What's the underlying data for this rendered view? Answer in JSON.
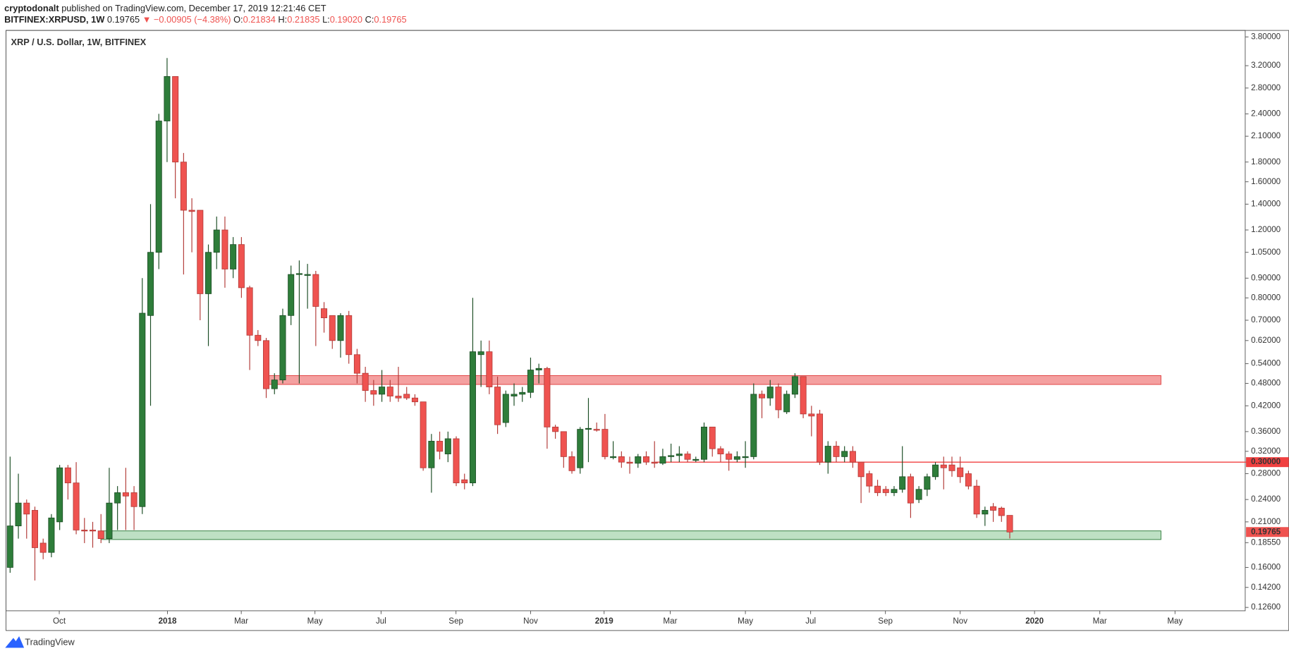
{
  "header": {
    "author": "cryptodonalt",
    "published": "published on TradingView.com, December 17, 2019 12:21:46 CET",
    "symbol": "BITFINEX:XRPUSD, 1W",
    "last": "0.19765",
    "change": "▼ −0.00905 (−4.38%)",
    "ohlc": [
      {
        "key": "O:",
        "value": "0.21834"
      },
      {
        "key": "H:",
        "value": "0.21835"
      },
      {
        "key": "L:",
        "value": "0.19020"
      },
      {
        "key": "C:",
        "value": "0.19765"
      }
    ]
  },
  "footer": {
    "brand": "TradingView"
  },
  "chart_data": {
    "type": "candlestick",
    "title": "XRP / U.S. Dollar, 1W, BITFINEX",
    "up_color": "#2e7d3a",
    "down_color": "#ef5350",
    "log_scale": true,
    "series": {
      "open": [
        0.16,
        0.205,
        0.235,
        0.225,
        0.185,
        0.175,
        0.21,
        0.29,
        0.265,
        0.2,
        0.2,
        0.199,
        0.19,
        0.235,
        0.25,
        0.25,
        0.23,
        0.72,
        1.05,
        2.3,
        3.0,
        1.8,
        1.35,
        1.35,
        0.82,
        1.05,
        1.2,
        0.95,
        1.1,
        0.85,
        0.64,
        0.62,
        0.465,
        0.49,
        0.72,
        0.92,
        0.92,
        0.92,
        0.75,
        0.72,
        0.62,
        0.72,
        0.57,
        0.51,
        0.46,
        0.45,
        0.47,
        0.445,
        0.45,
        0.44,
        0.43,
        0.29,
        0.34,
        0.315,
        0.345,
        0.27,
        0.265,
        0.57,
        0.58,
        0.47,
        0.38,
        0.445,
        0.45,
        0.455,
        0.52,
        0.525,
        0.37,
        0.36,
        0.31,
        0.29,
        0.365,
        0.365,
        0.365,
        0.31,
        0.31,
        0.3,
        0.298,
        0.31,
        0.3,
        0.298,
        0.31,
        0.312,
        0.315,
        0.305,
        0.305,
        0.37,
        0.325,
        0.315,
        0.305,
        0.31,
        0.31,
        0.45,
        0.44,
        0.47,
        0.405,
        0.45,
        0.5,
        0.4,
        0.4,
        0.3,
        0.33,
        0.31,
        0.32,
        0.3,
        0.28,
        0.26,
        0.255,
        0.25,
        0.255,
        0.275,
        0.24,
        0.255,
        0.275,
        0.295,
        0.295,
        0.29,
        0.28,
        0.26,
        0.22,
        0.23,
        0.228,
        0.21834
      ],
      "high": [
        0.31,
        0.28,
        0.24,
        0.23,
        0.19,
        0.22,
        0.295,
        0.295,
        0.3,
        0.215,
        0.21,
        0.22,
        0.29,
        0.26,
        0.29,
        0.26,
        0.9,
        1.4,
        2.4,
        3.35,
        3.0,
        1.9,
        1.45,
        1.35,
        1.1,
        1.3,
        1.3,
        1.15,
        1.15,
        0.86,
        0.66,
        0.63,
        0.51,
        0.75,
        0.97,
        1.0,
        0.98,
        0.94,
        0.78,
        0.72,
        0.73,
        0.74,
        0.59,
        0.53,
        0.49,
        0.52,
        0.49,
        0.53,
        0.47,
        0.45,
        0.43,
        0.355,
        0.36,
        0.36,
        0.35,
        0.28,
        0.8,
        0.62,
        0.62,
        0.5,
        0.46,
        0.48,
        0.47,
        0.56,
        0.54,
        0.53,
        0.375,
        0.36,
        0.32,
        0.37,
        0.44,
        0.38,
        0.4,
        0.34,
        0.32,
        0.31,
        0.315,
        0.32,
        0.34,
        0.325,
        0.335,
        0.33,
        0.32,
        0.31,
        0.38,
        0.37,
        0.33,
        0.32,
        0.32,
        0.34,
        0.48,
        0.46,
        0.49,
        0.48,
        0.46,
        0.51,
        0.5,
        0.42,
        0.41,
        0.34,
        0.34,
        0.33,
        0.33,
        0.3,
        0.285,
        0.27,
        0.26,
        0.26,
        0.33,
        0.28,
        0.26,
        0.28,
        0.3,
        0.31,
        0.31,
        0.31,
        0.285,
        0.27,
        0.23,
        0.235,
        0.23,
        0.21835
      ],
      "low": [
        0.155,
        0.19,
        0.19,
        0.148,
        0.168,
        0.17,
        0.2,
        0.24,
        0.195,
        0.185,
        0.18,
        0.185,
        0.185,
        0.2,
        0.2,
        0.2,
        0.22,
        0.42,
        0.95,
        1.8,
        1.45,
        0.92,
        1.05,
        0.7,
        0.6,
        0.95,
        0.85,
        0.9,
        0.8,
        0.52,
        0.6,
        0.44,
        0.45,
        0.48,
        0.68,
        0.48,
        0.75,
        0.6,
        0.65,
        0.59,
        0.56,
        0.54,
        0.48,
        0.43,
        0.42,
        0.43,
        0.43,
        0.43,
        0.435,
        0.42,
        0.285,
        0.25,
        0.305,
        0.3,
        0.26,
        0.255,
        0.26,
        0.47,
        0.45,
        0.355,
        0.37,
        0.42,
        0.43,
        0.44,
        0.48,
        0.325,
        0.345,
        0.29,
        0.28,
        0.28,
        0.3,
        0.36,
        0.305,
        0.305,
        0.29,
        0.28,
        0.29,
        0.295,
        0.29,
        0.295,
        0.3,
        0.3,
        0.3,
        0.3,
        0.3,
        0.31,
        0.3,
        0.285,
        0.3,
        0.29,
        0.305,
        0.39,
        0.42,
        0.39,
        0.4,
        0.44,
        0.39,
        0.35,
        0.295,
        0.28,
        0.3,
        0.3,
        0.29,
        0.235,
        0.25,
        0.245,
        0.245,
        0.245,
        0.25,
        0.215,
        0.235,
        0.245,
        0.27,
        0.255,
        0.275,
        0.265,
        0.255,
        0.215,
        0.205,
        0.21,
        0.21,
        0.1902
      ],
      "close": [
        0.205,
        0.235,
        0.22,
        0.18,
        0.175,
        0.215,
        0.29,
        0.265,
        0.2,
        0.199,
        0.199,
        0.19,
        0.235,
        0.25,
        0.245,
        0.23,
        0.73,
        1.05,
        2.3,
        3.0,
        1.8,
        1.35,
        1.34,
        0.82,
        1.05,
        1.2,
        0.95,
        1.1,
        0.85,
        0.64,
        0.62,
        0.465,
        0.49,
        0.72,
        0.92,
        0.925,
        0.92,
        0.76,
        0.71,
        0.62,
        0.72,
        0.57,
        0.51,
        0.46,
        0.45,
        0.47,
        0.445,
        0.44,
        0.44,
        0.43,
        0.29,
        0.34,
        0.32,
        0.345,
        0.265,
        0.265,
        0.58,
        0.58,
        0.47,
        0.375,
        0.45,
        0.45,
        0.455,
        0.52,
        0.525,
        0.37,
        0.36,
        0.31,
        0.285,
        0.365,
        0.367,
        0.363,
        0.31,
        0.31,
        0.3,
        0.298,
        0.31,
        0.3,
        0.298,
        0.31,
        0.312,
        0.315,
        0.305,
        0.305,
        0.37,
        0.325,
        0.315,
        0.305,
        0.31,
        0.31,
        0.45,
        0.44,
        0.47,
        0.41,
        0.45,
        0.5,
        0.4,
        0.395,
        0.3,
        0.33,
        0.31,
        0.32,
        0.3,
        0.275,
        0.26,
        0.25,
        0.25,
        0.255,
        0.275,
        0.235,
        0.255,
        0.275,
        0.295,
        0.29,
        0.285,
        0.275,
        0.26,
        0.22,
        0.225,
        0.225,
        0.218,
        0.19765
      ]
    },
    "xlim": [
      -0.5,
      149.5
    ],
    "xticks": [
      {
        "value": 5.95,
        "label": "Oct"
      },
      {
        "value": 19.05,
        "label": "2018"
      },
      {
        "value": 27.98,
        "label": "Mar"
      },
      {
        "value": 36.9,
        "label": "May"
      },
      {
        "value": 44.9,
        "label": "Jul"
      },
      {
        "value": 53.97,
        "label": "Sep"
      },
      {
        "value": 63,
        "label": "Nov"
      },
      {
        "value": 71.9,
        "label": "2019"
      },
      {
        "value": 79.9,
        "label": "Mar"
      },
      {
        "value": 89,
        "label": "May"
      },
      {
        "value": 96.9,
        "label": "Jul"
      },
      {
        "value": 105.95,
        "label": "Sep"
      },
      {
        "value": 115,
        "label": "Nov"
      },
      {
        "value": 124,
        "label": "2020"
      },
      {
        "value": 131.9,
        "label": "Mar"
      },
      {
        "value": 141,
        "label": "May"
      }
    ],
    "ylim": [
      0.1235,
      3.95
    ],
    "yticks": [
      {
        "value": 0.126,
        "label": "0.12600"
      },
      {
        "value": 0.142,
        "label": "0.14200"
      },
      {
        "value": 0.16,
        "label": "0.16000"
      },
      {
        "value": 0.1855,
        "label": "0.18550"
      },
      {
        "value": 0.21,
        "label": "0.21000"
      },
      {
        "value": 0.24,
        "label": "0.24000"
      },
      {
        "value": 0.28,
        "label": "0.28000"
      },
      {
        "value": 0.32,
        "label": "0.32000"
      },
      {
        "value": 0.36,
        "label": "0.36000"
      },
      {
        "value": 0.42,
        "label": "0.42000"
      },
      {
        "value": 0.48,
        "label": "0.48000"
      },
      {
        "value": 0.54,
        "label": "0.54000"
      },
      {
        "value": 0.62,
        "label": "0.62000"
      },
      {
        "value": 0.7,
        "label": "0.70000"
      },
      {
        "value": 0.8,
        "label": "0.80000"
      },
      {
        "value": 0.9,
        "label": "0.90000"
      },
      {
        "value": 1.05,
        "label": "1.05000"
      },
      {
        "value": 1.2,
        "label": "1.20000"
      },
      {
        "value": 1.4,
        "label": "1.40000"
      },
      {
        "value": 1.6,
        "label": "1.60000"
      },
      {
        "value": 1.8,
        "label": "1.80000"
      },
      {
        "value": 2.1,
        "label": "2.10000"
      },
      {
        "value": 2.4,
        "label": "2.40000"
      },
      {
        "value": 2.8,
        "label": "2.80000"
      },
      {
        "value": 3.2,
        "label": "3.20000"
      },
      {
        "value": 3.8,
        "label": "3.80000"
      }
    ],
    "zones": [
      {
        "from": 0.477,
        "to": 0.503,
        "x0": 30.8,
        "x1": 139.3,
        "color": "#f08080",
        "border": "#e04040"
      },
      {
        "from": 0.189,
        "to": 0.199,
        "x0": 11,
        "x1": 139.3,
        "color": "#a8d5b0",
        "border": "#2e7d3a"
      }
    ],
    "hlines": [
      {
        "value": 0.3,
        "label": "0.30000",
        "x0": 78.1,
        "color": "#f04040"
      }
    ],
    "last_price": {
      "value": 0.19765,
      "label": "0.19765",
      "color": "#ef5350"
    }
  }
}
